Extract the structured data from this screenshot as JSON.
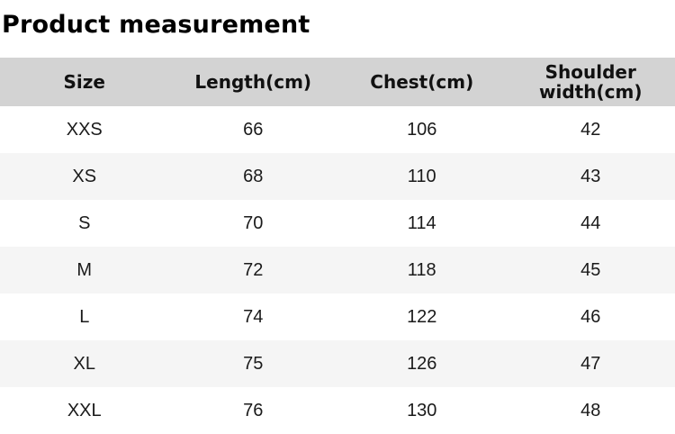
{
  "page": {
    "title": "Product measurement"
  },
  "table": {
    "headers": [
      "Size",
      "Length(cm)",
      "Chest(cm)",
      "Shoulder width(cm)"
    ],
    "rows": [
      [
        "XXS",
        "66",
        "106",
        "42"
      ],
      [
        "XS",
        "68",
        "110",
        "43"
      ],
      [
        "S",
        "70",
        "114",
        "44"
      ],
      [
        "M",
        "72",
        "118",
        "45"
      ],
      [
        "L",
        "74",
        "122",
        "46"
      ],
      [
        "XL",
        "75",
        "126",
        "47"
      ],
      [
        "XXL",
        "76",
        "130",
        "48"
      ]
    ],
    "colors": {
      "header_bg": "#d3d3d3",
      "row_alt_bg": "#f5f5f5",
      "text": "#1a1a1a"
    }
  }
}
